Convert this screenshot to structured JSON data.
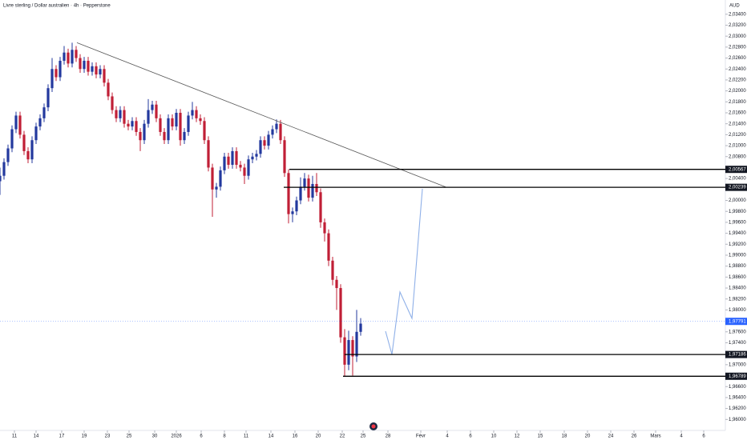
{
  "chart_data": {
    "type": "candlestick",
    "title": "Livre sterling / Dollar australien · 4h · Pepperstone",
    "currency": "AUD",
    "up_color": "#23399e",
    "down_color": "#c01f36",
    "xlim": [
      0,
      181
    ],
    "ylim": [
      1.958,
      2.0366
    ],
    "yticks": [
      {
        "value": 2.034,
        "label": "2,03400"
      },
      {
        "value": 2.032,
        "label": "2,03200"
      },
      {
        "value": 2.03,
        "label": "2,03000"
      },
      {
        "value": 2.028,
        "label": "2,02800"
      },
      {
        "value": 2.026,
        "label": "2,02600"
      },
      {
        "value": 2.024,
        "label": "2,02400"
      },
      {
        "value": 2.022,
        "label": "2,02200"
      },
      {
        "value": 2.02,
        "label": "2,02000"
      },
      {
        "value": 2.018,
        "label": "2,01800"
      },
      {
        "value": 2.016,
        "label": "2,01600"
      },
      {
        "value": 2.014,
        "label": "2,01400"
      },
      {
        "value": 2.012,
        "label": "2,01200"
      },
      {
        "value": 2.01,
        "label": "2,01000"
      },
      {
        "value": 2.008,
        "label": "2,00800"
      },
      {
        "value": 2.004,
        "label": "2,00400"
      },
      {
        "value": 2.0,
        "label": "2,00000"
      },
      {
        "value": 1.998,
        "label": "1,99800"
      },
      {
        "value": 1.996,
        "label": "1,99600"
      },
      {
        "value": 1.994,
        "label": "1,99400"
      },
      {
        "value": 1.992,
        "label": "1,99200"
      },
      {
        "value": 1.99,
        "label": "1,99000"
      },
      {
        "value": 1.988,
        "label": "1,98800"
      },
      {
        "value": 1.986,
        "label": "1,98600"
      },
      {
        "value": 1.984,
        "label": "1,98400"
      },
      {
        "value": 1.982,
        "label": "1,98200"
      },
      {
        "value": 1.98,
        "label": "1,98000"
      },
      {
        "value": 1.976,
        "label": "1,97600"
      },
      {
        "value": 1.974,
        "label": "1,97400"
      },
      {
        "value": 1.97,
        "label": "1,97000"
      },
      {
        "value": 1.966,
        "label": "1,96600"
      },
      {
        "value": 1.964,
        "label": "1,96400"
      },
      {
        "value": 1.962,
        "label": "1,96200"
      },
      {
        "value": 1.96,
        "label": "1,96000"
      }
    ],
    "xticks": [
      {
        "value": 3.6,
        "label": "11"
      },
      {
        "value": 9,
        "label": "14"
      },
      {
        "value": 15.4,
        "label": "17"
      },
      {
        "value": 21,
        "label": "19"
      },
      {
        "value": 26.8,
        "label": "23"
      },
      {
        "value": 32.2,
        "label": "25"
      },
      {
        "value": 38.6,
        "label": "30"
      },
      {
        "value": 44,
        "label": "2026"
      },
      {
        "value": 50.2,
        "label": "6"
      },
      {
        "value": 56,
        "label": "8"
      },
      {
        "value": 61.4,
        "label": "11"
      },
      {
        "value": 67.6,
        "label": "14"
      },
      {
        "value": 73.6,
        "label": "16"
      },
      {
        "value": 79.4,
        "label": "20"
      },
      {
        "value": 85.4,
        "label": "22"
      },
      {
        "value": 90.6,
        "label": "25"
      },
      {
        "value": 96.8,
        "label": "28"
      },
      {
        "value": 105,
        "label": "Févr"
      },
      {
        "value": 111.6,
        "label": "4"
      },
      {
        "value": 117.4,
        "label": "6"
      },
      {
        "value": 123.2,
        "label": "10"
      },
      {
        "value": 129,
        "label": "12"
      },
      {
        "value": 134.8,
        "label": "15"
      },
      {
        "value": 140.8,
        "label": "18"
      },
      {
        "value": 146.6,
        "label": "20"
      },
      {
        "value": 152.4,
        "label": "24"
      },
      {
        "value": 158.2,
        "label": "26"
      },
      {
        "value": 163.6,
        "label": "Mars"
      },
      {
        "value": 170,
        "label": "4"
      },
      {
        "value": 175.6,
        "label": "6"
      }
    ],
    "x": [
      0,
      1,
      2,
      3,
      4,
      5,
      6,
      7,
      8,
      9,
      10,
      11,
      12,
      13,
      14,
      15,
      16,
      17,
      18,
      19,
      20,
      21,
      22,
      23,
      24,
      25,
      26,
      27,
      28,
      29,
      30,
      31,
      32,
      33,
      34,
      35,
      36,
      37,
      38,
      39,
      40,
      41,
      42,
      43,
      44,
      45,
      46,
      47,
      48,
      49,
      50,
      51,
      52,
      53,
      54,
      55,
      56,
      57,
      58,
      59,
      60,
      61,
      62,
      63,
      64,
      65,
      66,
      67,
      68,
      69,
      70,
      71,
      72,
      73,
      74,
      75,
      76,
      77,
      78,
      79,
      80,
      81,
      82,
      83,
      84,
      85,
      86,
      87,
      88,
      89,
      90
    ],
    "ohlc": [
      [
        2.0035,
        2.006,
        2.001,
        2.0045
      ],
      [
        2.0045,
        2.0077,
        2.0038,
        2.007
      ],
      [
        2.007,
        2.0102,
        2.0063,
        2.0095
      ],
      [
        2.0095,
        2.0137,
        2.0088,
        2.013
      ],
      [
        2.013,
        2.0162,
        2.0123,
        2.0155
      ],
      [
        2.0155,
        2.0162,
        2.0113,
        2.012
      ],
      [
        2.012,
        2.0127,
        2.0083,
        2.009
      ],
      [
        2.009,
        2.0097,
        2.0068,
        2.0075
      ],
      [
        2.0075,
        2.0117,
        2.0068,
        2.011
      ],
      [
        2.011,
        2.0142,
        2.0103,
        2.0135
      ],
      [
        2.0135,
        2.0157,
        2.0128,
        2.015
      ],
      [
        2.015,
        2.0177,
        2.0143,
        2.017
      ],
      [
        2.017,
        2.0212,
        2.0163,
        2.0205
      ],
      [
        2.0205,
        2.026,
        2.0198,
        2.024
      ],
      [
        2.024,
        2.0247,
        2.0218,
        2.0225
      ],
      [
        2.0225,
        2.0262,
        2.0218,
        2.0255
      ],
      [
        2.0255,
        2.0282,
        2.0248,
        2.027
      ],
      [
        2.027,
        2.0277,
        2.0243,
        2.025
      ],
      [
        2.025,
        2.0288,
        2.0243,
        2.0275
      ],
      [
        2.0275,
        2.0282,
        2.0253,
        2.026
      ],
      [
        2.026,
        2.0267,
        2.0233,
        2.024
      ],
      [
        2.024,
        2.0262,
        2.0233,
        2.0255
      ],
      [
        2.0255,
        2.0262,
        2.0228,
        2.0235
      ],
      [
        2.0235,
        2.0252,
        2.0228,
        2.0245
      ],
      [
        2.0245,
        2.0252,
        2.0223,
        2.023
      ],
      [
        2.023,
        2.0247,
        2.0223,
        2.024
      ],
      [
        2.024,
        2.0247,
        2.0208,
        2.0215
      ],
      [
        2.0215,
        2.0222,
        2.0183,
        2.019
      ],
      [
        2.019,
        2.0197,
        2.0158,
        2.0165
      ],
      [
        2.0165,
        2.0172,
        2.0143,
        2.015
      ],
      [
        2.015,
        2.0172,
        2.0143,
        2.0165
      ],
      [
        2.0165,
        2.0172,
        2.0133,
        2.014
      ],
      [
        2.014,
        2.0147,
        2.0128,
        2.0135
      ],
      [
        2.0135,
        2.0152,
        2.0128,
        2.0145
      ],
      [
        2.0145,
        2.0152,
        2.0118,
        2.0125
      ],
      [
        2.0125,
        2.0132,
        2.009,
        2.011
      ],
      [
        2.011,
        2.0147,
        2.0103,
        2.014
      ],
      [
        2.014,
        2.0185,
        2.0133,
        2.0165
      ],
      [
        2.0165,
        2.0182,
        2.0158,
        2.0175
      ],
      [
        2.0175,
        2.0182,
        2.0143,
        2.015
      ],
      [
        2.015,
        2.0157,
        2.0118,
        2.0125
      ],
      [
        2.0125,
        2.0132,
        2.0103,
        2.011
      ],
      [
        2.011,
        2.0157,
        2.0103,
        2.015
      ],
      [
        2.015,
        2.0157,
        2.0128,
        2.0135
      ],
      [
        2.0135,
        2.0167,
        2.0128,
        2.016
      ],
      [
        2.016,
        2.0167,
        2.01,
        2.011
      ],
      [
        2.011,
        2.0132,
        2.0103,
        2.0125
      ],
      [
        2.0125,
        2.0162,
        2.0118,
        2.0155
      ],
      [
        2.0155,
        2.018,
        2.0148,
        2.0165
      ],
      [
        2.0165,
        2.0172,
        2.0143,
        2.015
      ],
      [
        2.015,
        2.0157,
        2.0138,
        2.0145
      ],
      [
        2.0145,
        2.0152,
        2.0103,
        2.011
      ],
      [
        2.011,
        2.0117,
        2.0053,
        2.006
      ],
      [
        2.006,
        2.0067,
        1.997,
        2.002
      ],
      [
        2.002,
        2.0032,
        2.0005,
        2.0025
      ],
      [
        2.0025,
        2.0062,
        2.0018,
        2.0055
      ],
      [
        2.0055,
        2.0087,
        2.0048,
        2.008
      ],
      [
        2.008,
        2.0087,
        2.0058,
        2.0065
      ],
      [
        2.0065,
        2.0097,
        2.0058,
        2.009
      ],
      [
        2.009,
        2.0097,
        2.0058,
        2.0065
      ],
      [
        2.0065,
        2.0072,
        2.0053,
        2.006
      ],
      [
        2.006,
        2.0067,
        2.003,
        2.0045
      ],
      [
        2.0045,
        2.0082,
        2.0038,
        2.0075
      ],
      [
        2.0075,
        2.0087,
        2.0068,
        2.008
      ],
      [
        2.008,
        2.0092,
        2.0073,
        2.0085
      ],
      [
        2.0085,
        2.0117,
        2.0078,
        2.011
      ],
      [
        2.011,
        2.0117,
        2.0093,
        2.01
      ],
      [
        2.01,
        2.0127,
        2.0093,
        2.012
      ],
      [
        2.012,
        2.0137,
        2.0113,
        2.013
      ],
      [
        2.013,
        2.0148,
        2.0123,
        2.014
      ],
      [
        2.014,
        2.0147,
        2.0103,
        2.011
      ],
      [
        2.011,
        2.0117,
        2.0043,
        2.005
      ],
      [
        2.005,
        2.0057,
        1.9958,
        1.9975
      ],
      [
        1.9975,
        1.9987,
        1.996,
        1.998
      ],
      [
        1.998,
        2.0007,
        1.9973,
        2.0
      ],
      [
        2.0,
        2.0042,
        1.9993,
        2.0025
      ],
      [
        2.0025,
        2.005,
        2.0018,
        2.004
      ],
      [
        2.004,
        2.0047,
        1.9998,
        2.0005
      ],
      [
        2.0005,
        2.0045,
        1.9998,
        2.003
      ],
      [
        2.003,
        2.005,
        2.0008,
        2.0015
      ],
      [
        2.0015,
        2.0022,
        1.995,
        1.996
      ],
      [
        1.996,
        1.9967,
        1.9925,
        1.994
      ],
      [
        1.994,
        1.9947,
        1.988,
        1.989
      ],
      [
        1.989,
        1.9897,
        1.9845,
        1.9855
      ],
      [
        1.9855,
        1.9862,
        1.98,
        1.984
      ],
      [
        1.984,
        1.9847,
        1.974,
        1.975
      ],
      [
        1.975,
        1.9765,
        1.9678,
        1.97
      ],
      [
        1.97,
        1.9762,
        1.969,
        1.9745
      ],
      [
        1.9745,
        1.9752,
        1.968,
        1.9715
      ],
      [
        1.9715,
        1.98,
        1.9705,
        1.976
      ],
      [
        1.976,
        1.9785,
        1.9753,
        1.9775
      ]
    ],
    "trendline": {
      "x": [
        19.2,
        111.4
      ],
      "y": [
        2.0288,
        2.0024
      ]
    },
    "projection": {
      "color": "#8fb0e8",
      "x": [
        96.2,
        97.8,
        99.8,
        102.8,
        105.4
      ],
      "y": [
        1.97612,
        1.97188,
        1.98328,
        1.97846,
        2.00212
      ]
    },
    "levels": [
      {
        "value": 2.00567,
        "label": "2,00567",
        "x_start": 72.2
      },
      {
        "value": 2.00239,
        "label": "2,00239",
        "x_start": 70.8
      },
      {
        "value": 1.97186,
        "label": "1,97186",
        "x_start": 86
      },
      {
        "value": 1.96789,
        "label": "1,96789",
        "x_start": 85.6
      }
    ],
    "current": {
      "value": 1.97791,
      "label": "1,97791",
      "color": "#2962ff"
    }
  }
}
